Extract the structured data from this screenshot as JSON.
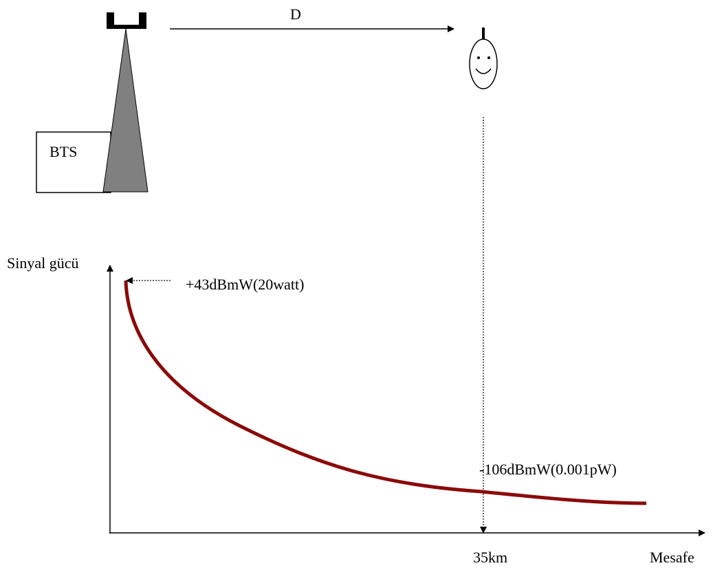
{
  "labels": {
    "distance": "D",
    "bts": "BTS",
    "y_axis": "Sinyal gücü",
    "x_axis": "Mesafe",
    "start_power": "+43dBmW(20watt)",
    "end_power": "-106dBmW(0.001pW)",
    "range": "35km"
  }
}
